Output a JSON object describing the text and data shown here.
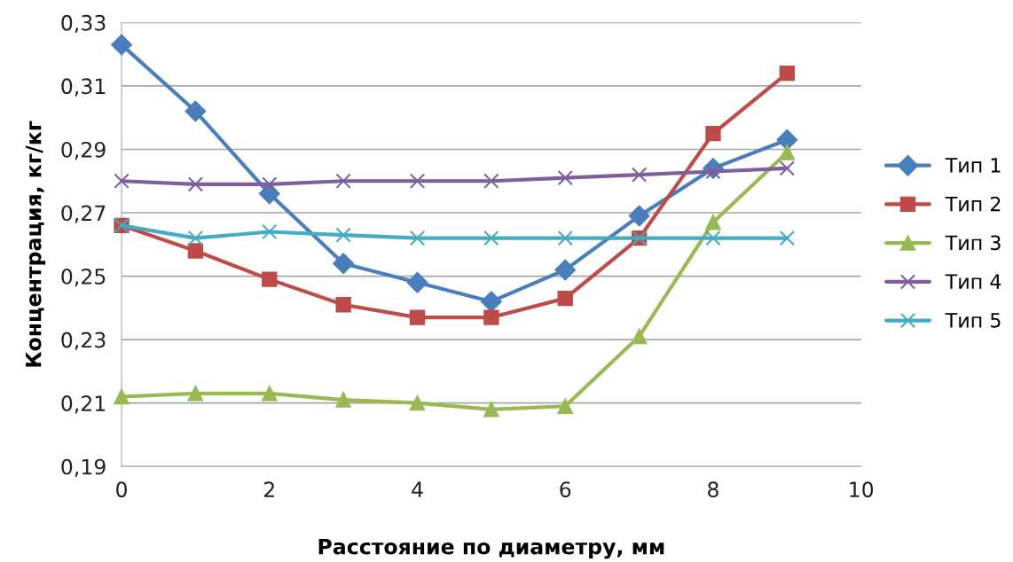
{
  "chart_data": {
    "type": "line",
    "xlabel": "Расстояние по диаметру, мм",
    "ylabel": "Концентрация, кг/кг",
    "x": [
      0,
      1,
      2,
      3,
      4,
      5,
      6,
      7,
      8,
      9
    ],
    "series": [
      {
        "name": "Тип 1",
        "color": "#4a7ebb",
        "marker": "diamond",
        "values": [
          0.323,
          0.302,
          0.276,
          0.254,
          0.248,
          0.242,
          0.252,
          0.269,
          0.284,
          0.293
        ]
      },
      {
        "name": "Тип 2",
        "color": "#be4b48",
        "marker": "square",
        "values": [
          0.266,
          0.258,
          0.249,
          0.241,
          0.237,
          0.237,
          0.243,
          0.262,
          0.295,
          0.314
        ]
      },
      {
        "name": "Тип 3",
        "color": "#98b954",
        "marker": "triangle",
        "values": [
          0.212,
          0.213,
          0.213,
          0.211,
          0.21,
          0.208,
          0.209,
          0.231,
          0.267,
          0.289
        ]
      },
      {
        "name": "Тип 4",
        "color": "#7d5fa0",
        "marker": "cross",
        "values": [
          0.28,
          0.279,
          0.279,
          0.28,
          0.28,
          0.28,
          0.281,
          0.282,
          0.283,
          0.284
        ]
      },
      {
        "name": "Тип 5",
        "color": "#46aac5",
        "marker": "cross",
        "values": [
          0.266,
          0.262,
          0.264,
          0.263,
          0.262,
          0.262,
          0.262,
          0.262,
          0.262,
          0.262
        ]
      }
    ],
    "xlim": [
      0,
      10
    ],
    "xticks": [
      0,
      2,
      4,
      6,
      8,
      10
    ],
    "ylim": [
      0.19,
      0.33
    ],
    "yticks": [
      {
        "value": 0.19,
        "label": "0,19"
      },
      {
        "value": 0.21,
        "label": "0,21"
      },
      {
        "value": 0.23,
        "label": "0,23"
      },
      {
        "value": 0.25,
        "label": "0,25"
      },
      {
        "value": 0.27,
        "label": "0,27"
      },
      {
        "value": 0.29,
        "label": "0,29"
      },
      {
        "value": 0.31,
        "label": "0,31"
      },
      {
        "value": 0.33,
        "label": "0,33"
      }
    ],
    "grid": "y",
    "legend": "right",
    "line_style": "solid"
  }
}
